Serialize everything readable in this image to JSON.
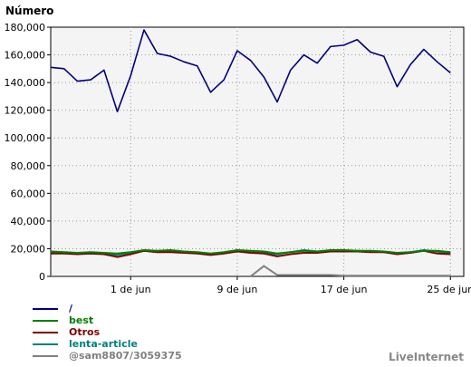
{
  "brand": "LiveInternet",
  "chart_data": {
    "type": "line",
    "title": "",
    "ylabel": "Número",
    "xlabel": "",
    "ylim": [
      0,
      180000
    ],
    "yticks": [
      0,
      20000,
      40000,
      60000,
      80000,
      100000,
      120000,
      140000,
      160000,
      180000
    ],
    "ytick_labels": [
      "0",
      "20,000",
      "40,000",
      "60,000",
      "80,000",
      "100,000",
      "120,000",
      "140,000",
      "160,000",
      "180,000"
    ],
    "x_range": [
      "25 may",
      "26 jun"
    ],
    "x_ticks": [
      {
        "day": 7,
        "label": "1 de jun"
      },
      {
        "day": 15,
        "label": "9 de jun"
      },
      {
        "day": 23,
        "label": "17 de jun"
      },
      {
        "day": 31,
        "label": "25 de jun"
      }
    ],
    "grid": true,
    "legend_position": "bottom-left",
    "series": [
      {
        "name": "/",
        "color": "#000080",
        "values": [
          151000,
          150000,
          141000,
          142000,
          149000,
          119000,
          145000,
          178000,
          161000,
          159000,
          155000,
          152000,
          133000,
          142000,
          163000,
          156000,
          144000,
          126000,
          149000,
          160000,
          154000,
          166000,
          167000,
          171000,
          162000,
          159000,
          137000,
          153000,
          164000,
          155000,
          147000
        ]
      },
      {
        "name": "best",
        "color": "#008000",
        "values": [
          18000,
          17500,
          17000,
          17500,
          17000,
          16500,
          17500,
          19000,
          18500,
          19000,
          18000,
          17500,
          16500,
          17500,
          19000,
          18500,
          18000,
          16500,
          17500,
          18500,
          18000,
          19000,
          19000,
          18500,
          18500,
          18000,
          17000,
          17500,
          18500,
          18500,
          17500
        ]
      },
      {
        "name": "Otros",
        "color": "#800000",
        "values": [
          16500,
          16500,
          16000,
          16500,
          16000,
          14000,
          16000,
          18500,
          17500,
          17500,
          17000,
          16500,
          15500,
          16500,
          18000,
          17000,
          16500,
          14500,
          16000,
          17000,
          17000,
          18000,
          18000,
          18000,
          17500,
          17500,
          16000,
          17000,
          18500,
          16500,
          16000
        ]
      },
      {
        "name": "lenta-article",
        "color": "#008080",
        "values": [
          17500,
          17000,
          16500,
          16500,
          16500,
          15500,
          17000,
          18500,
          17500,
          18000,
          17500,
          17000,
          16000,
          17000,
          18500,
          17500,
          17000,
          16000,
          17500,
          19000,
          18000,
          18500,
          18500,
          18500,
          18000,
          17500,
          16500,
          17500,
          19000,
          18000,
          16500
        ]
      },
      {
        "name": "@sam8807/3059375",
        "color": "#808080",
        "values": [
          0,
          0,
          0,
          0,
          0,
          0,
          0,
          0,
          0,
          0,
          0,
          0,
          0,
          0,
          0,
          0,
          7500,
          1000,
          1000,
          1000,
          1000,
          1000,
          500,
          500,
          500,
          500,
          500,
          500,
          500,
          500,
          500
        ]
      }
    ]
  }
}
